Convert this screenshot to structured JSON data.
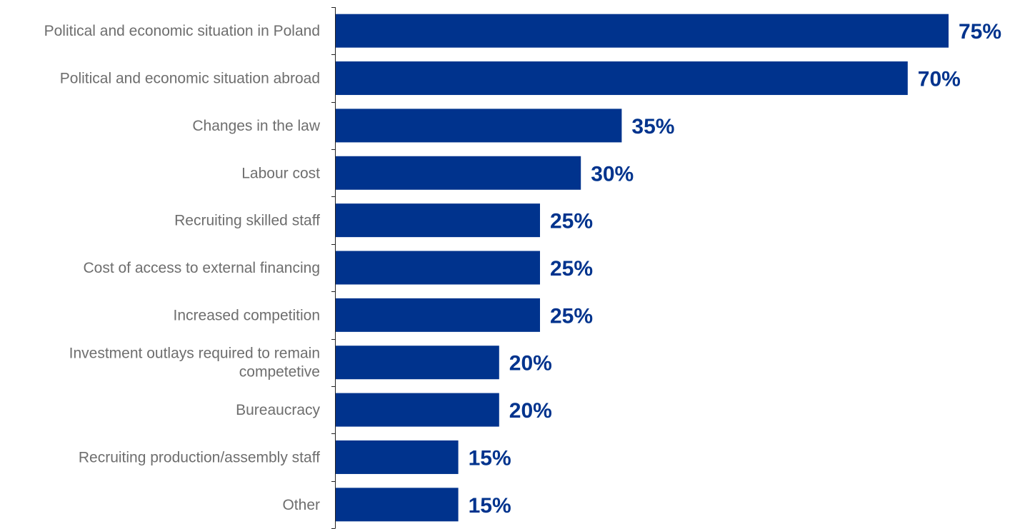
{
  "chart_data": {
    "type": "bar",
    "orientation": "horizontal",
    "categories": [
      "Political and economic situation in Poland",
      "Political and economic situation abroad",
      "Changes in the law",
      "Labour cost",
      "Recruiting skilled staff",
      "Cost of access to external financing",
      "Increased competition",
      "Investment outlays required to remain competetive",
      "Bureaucracy",
      "Recruiting production/assembly staff",
      "Other"
    ],
    "category_label_lines": [
      [
        "Political and economic situation in Poland"
      ],
      [
        "Political and economic situation abroad"
      ],
      [
        "Changes in the law"
      ],
      [
        "Labour cost"
      ],
      [
        "Recruiting skilled staff"
      ],
      [
        "Cost of access to external financing"
      ],
      [
        "Increased competition"
      ],
      [
        "Investment outlays required to remain",
        "competetive"
      ],
      [
        "Bureaucracy"
      ],
      [
        "Recruiting production/assembly staff"
      ],
      [
        "Other"
      ]
    ],
    "values": [
      75,
      70,
      35,
      30,
      25,
      25,
      25,
      20,
      20,
      15,
      15
    ],
    "data_labels": [
      "75%",
      "70%",
      "35%",
      "30%",
      "25%",
      "25%",
      "25%",
      "20%",
      "20%",
      "15%",
      "15%"
    ],
    "title": "",
    "xlabel": "",
    "ylabel": "",
    "xlim": [
      0,
      100
    ],
    "grid": false,
    "legend": "none",
    "bar_color": "#00338d",
    "label_color": "#6e6e6e",
    "value_label_color": "#00338d"
  }
}
